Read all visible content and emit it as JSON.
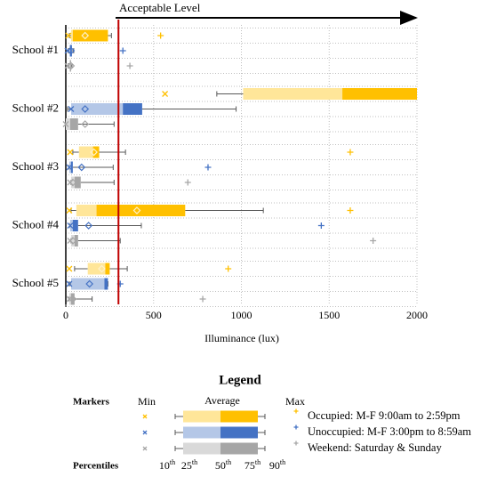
{
  "chart_data": {
    "type": "box",
    "categories": [
      "School #1",
      "School #2",
      "School #3",
      "School #4",
      "School #5"
    ],
    "xlabel": "Illuminance (lux)",
    "xlim": [
      0,
      2000
    ],
    "xticks": [
      0,
      500,
      1000,
      1500,
      2000
    ],
    "grid": true,
    "threshold": {
      "value": 300,
      "label": "Acceptable Level",
      "color": "#c00000"
    },
    "series": [
      {
        "name": "Occupied: M-F 9:00am to 2:59pm",
        "color": "#ffc000",
        "light_color": "#ffe699",
        "min": [
          15,
          565,
          25,
          20,
          20
        ],
        "p10": [
          20,
          860,
          40,
          30,
          50
        ],
        "p25": [
          30,
          1010,
          75,
          60,
          125
        ],
        "p50": [
          40,
          1575,
          155,
          175,
          225
        ],
        "p75": [
          240,
          2000,
          190,
          680,
          250
        ],
        "p90": [
          260,
          null,
          340,
          1125,
          350
        ],
        "mean": [
          110,
          null,
          160,
          405,
          205
        ],
        "max": [
          540,
          null,
          1620,
          1620,
          925
        ]
      },
      {
        "name": "Unoccupied: M-F 3:00pm to 8:59am",
        "color": "#4472c4",
        "light_color": "#b4c7e7",
        "min": [
          10,
          30,
          20,
          25,
          20
        ],
        "p10": [
          15,
          10,
          20,
          25,
          20
        ],
        "p25": [
          20,
          30,
          20,
          25,
          30
        ],
        "p50": [
          25,
          325,
          30,
          40,
          220
        ],
        "p75": [
          35,
          435,
          40,
          70,
          240
        ],
        "p90": [
          45,
          970,
          270,
          430,
          240
        ],
        "mean": [
          30,
          110,
          90,
          130,
          135
        ],
        "max": [
          325,
          null,
          810,
          1455,
          310
        ]
      },
      {
        "name": "Weekend: Saturday & Sunday",
        "color": "#a6a6a6",
        "light_color": "#d9d9d9",
        "min": [
          10,
          0,
          25,
          25,
          20
        ],
        "p10": [
          15,
          0,
          30,
          30,
          20
        ],
        "p25": [
          20,
          0,
          30,
          30,
          20
        ],
        "p50": [
          25,
          25,
          50,
          50,
          30
        ],
        "p75": [
          30,
          70,
          85,
          70,
          50
        ],
        "p90": [
          35,
          275,
          275,
          310,
          150
        ],
        "mean": [
          30,
          110,
          40,
          40,
          40
        ],
        "max": [
          365,
          null,
          695,
          1750,
          780
        ]
      }
    ],
    "legend": {
      "title": "Legend",
      "markers_label": "Markers",
      "min_label": "Min",
      "average_label": "Average",
      "max_label": "Max",
      "percentiles_label": "Percentiles",
      "percentiles": [
        {
          "num": "10",
          "sup": "th"
        },
        {
          "num": "25",
          "sup": "th"
        },
        {
          "num": "50",
          "sup": "th"
        },
        {
          "num": "75",
          "sup": "th"
        },
        {
          "num": "90",
          "sup": "th"
        }
      ]
    }
  }
}
